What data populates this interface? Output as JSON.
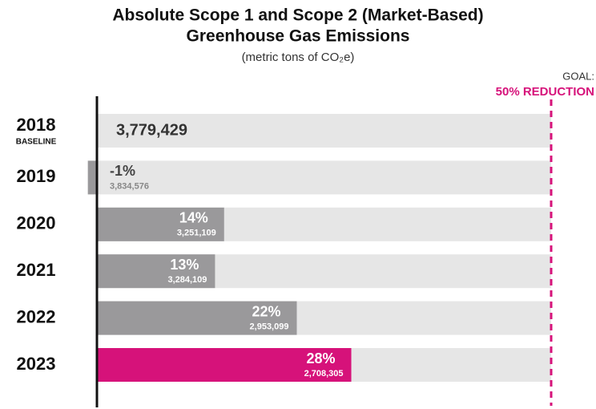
{
  "chart_data": {
    "type": "bar",
    "orientation": "horizontal",
    "title": [
      "Absolute Scope 1 and Scope 2 (Market-Based)",
      "Greenhouse Gas Emissions"
    ],
    "subtitle": "(metric tons of CO₂e)",
    "categories": [
      "2018",
      "2019",
      "2020",
      "2021",
      "2022",
      "2023"
    ],
    "category_notes": [
      "BASELINE",
      null,
      null,
      null,
      null,
      null
    ],
    "values": [
      null,
      -1,
      14,
      13,
      22,
      28
    ],
    "value_labels": [
      null,
      "-1%",
      "14%",
      "13%",
      "22%",
      "28%"
    ],
    "emissions": [
      3779429,
      3834576,
      3251109,
      3284109,
      2953099,
      2708305
    ],
    "emission_labels": [
      "3,779,429",
      "3,834,576",
      "3,251,109",
      "3,284,109",
      "2,953,099",
      "2,708,305"
    ],
    "colors": [
      "#9a999b",
      "#9a999b",
      "#9a999b",
      "#9a999b",
      "#9a999b",
      "#d6127a"
    ],
    "track_color": "#e6e6e6",
    "xlim": [
      0,
      50
    ],
    "goal_label": "GOAL:",
    "goal": {
      "value": 50,
      "label": "50% REDUCTION"
    },
    "goal_color": "#d6127a"
  }
}
